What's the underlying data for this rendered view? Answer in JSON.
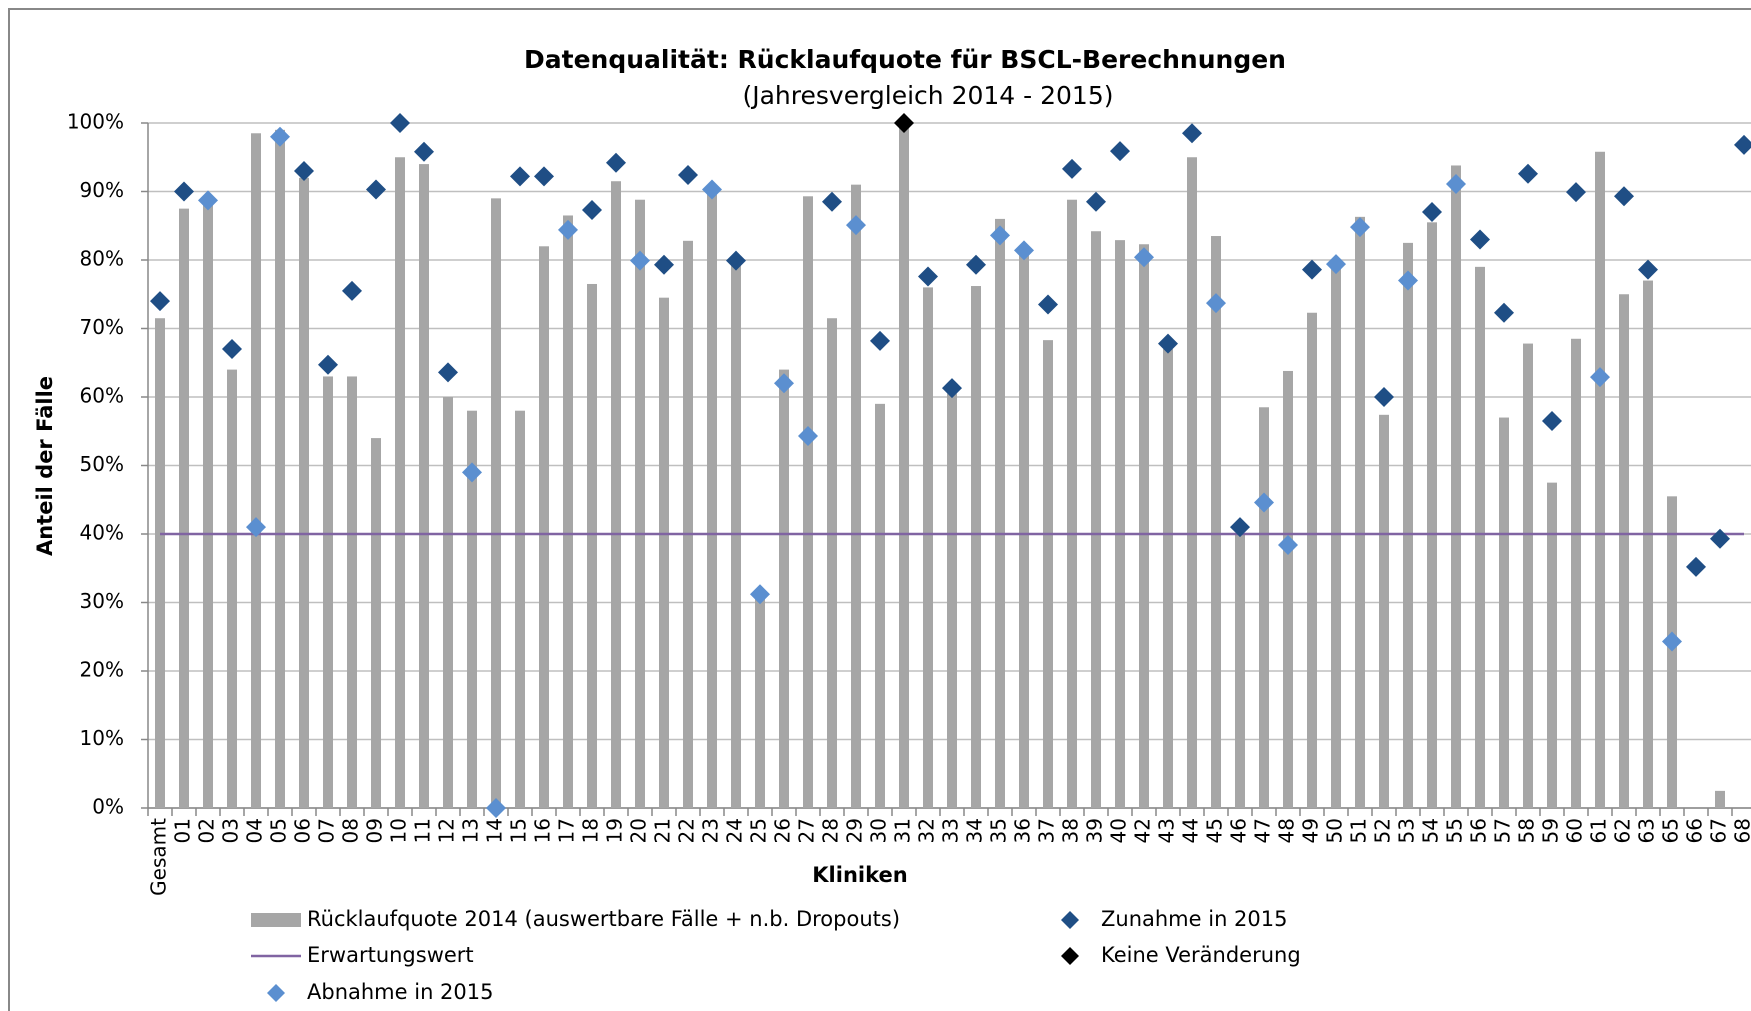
{
  "chart_data": {
    "type": "bar",
    "title": "Datenqualität: Rücklaufquote für BSCL-Berechnungen",
    "subtitle": "(Jahresvergleich 2014 - 2015)",
    "x_label": "Kliniken",
    "y_label": "Anteil der Fälle",
    "categories": [
      "Gesamt",
      "01",
      "02",
      "03",
      "04",
      "05",
      "06",
      "07",
      "08",
      "09",
      "10",
      "11",
      "12",
      "13",
      "14",
      "15",
      "16",
      "17",
      "18",
      "19",
      "20",
      "21",
      "22",
      "23",
      "24",
      "25",
      "26",
      "27",
      "28",
      "29",
      "30",
      "31",
      "32",
      "33",
      "34",
      "35",
      "36",
      "37",
      "38",
      "39",
      "40",
      "42",
      "43",
      "44",
      "45",
      "46",
      "47",
      "48",
      "49",
      "50",
      "51",
      "52",
      "53",
      "54",
      "55",
      "56",
      "57",
      "58",
      "59",
      "60",
      "61",
      "62",
      "63",
      "65",
      "66",
      "67",
      "68"
    ],
    "ylim": [
      0,
      100
    ],
    "yticks": [
      {
        "value": 0,
        "label": "0%"
      },
      {
        "value": 10,
        "label": "10%"
      },
      {
        "value": 20,
        "label": "20%"
      },
      {
        "value": 30,
        "label": "30%"
      },
      {
        "value": 40,
        "label": "40%"
      },
      {
        "value": 50,
        "label": "50%"
      },
      {
        "value": 60,
        "label": "60%"
      },
      {
        "value": 70,
        "label": "70%"
      },
      {
        "value": 80,
        "label": "80%"
      },
      {
        "value": 90,
        "label": "90%"
      },
      {
        "value": 100,
        "label": "100%"
      }
    ],
    "grid": true,
    "series": [
      {
        "name": "Rücklaufquote 2014 (auswertbare Fälle + n.b. Dropouts)",
        "type": "bar",
        "color": "#a6a6a6",
        "values": [
          71.5,
          87.5,
          89,
          64,
          98.5,
          99,
          92,
          63,
          63,
          54,
          95,
          94,
          60,
          58,
          89,
          58,
          82,
          86.5,
          76.5,
          91.5,
          88.8,
          74.5,
          82.8,
          90.5,
          79.8,
          31,
          64,
          89.3,
          71.5,
          91,
          59,
          100,
          76,
          60.5,
          76.2,
          86,
          82,
          68.3,
          88.8,
          84.2,
          82.9,
          82.3,
          67,
          95,
          83.5,
          40,
          58.5,
          63.8,
          72.3,
          79,
          86.3,
          57.4,
          82.5,
          85.5,
          93.8,
          79,
          57,
          67.8,
          47.5,
          68.5,
          95.8,
          75,
          77,
          45.5,
          null,
          2.5,
          null
        ]
      },
      {
        "name": "Erwartungswert",
        "type": "line",
        "color": "#8064a2",
        "values": [
          40,
          40,
          40,
          40,
          40,
          40,
          40,
          40,
          40,
          40,
          40,
          40,
          40,
          40,
          40,
          40,
          40,
          40,
          40,
          40,
          40,
          40,
          40,
          40,
          40,
          40,
          40,
          40,
          40,
          40,
          40,
          40,
          40,
          40,
          40,
          40,
          40,
          40,
          40,
          40,
          40,
          40,
          40,
          40,
          40,
          40,
          40,
          40,
          40,
          40,
          40,
          40,
          40,
          40,
          40,
          40,
          40,
          40,
          40,
          40,
          40,
          40,
          40,
          40,
          40,
          40,
          40
        ]
      },
      {
        "name": "Abnahme in 2015",
        "type": "scatter",
        "color": "#5b8fd0",
        "values": [
          null,
          null,
          88.7,
          null,
          41,
          98,
          null,
          null,
          null,
          null,
          null,
          null,
          null,
          49,
          0,
          null,
          null,
          84.4,
          null,
          null,
          79.9,
          null,
          null,
          90.3,
          null,
          31.2,
          62,
          54.3,
          null,
          85.1,
          null,
          null,
          null,
          null,
          null,
          83.6,
          81.4,
          null,
          null,
          null,
          null,
          80.4,
          null,
          null,
          73.7,
          null,
          44.6,
          38.4,
          null,
          79.4,
          84.8,
          null,
          77,
          null,
          91.1,
          null,
          null,
          null,
          null,
          null,
          62.9,
          null,
          null,
          24.3,
          null,
          null,
          null
        ]
      },
      {
        "name": "Zunahme in 2015",
        "type": "scatter",
        "color": "#1f4e85",
        "values": [
          74,
          90,
          null,
          67,
          null,
          null,
          93,
          64.7,
          75.5,
          90.3,
          100,
          95.8,
          63.6,
          null,
          null,
          92.2,
          92.2,
          null,
          87.3,
          94.2,
          null,
          79.3,
          92.4,
          null,
          79.9,
          null,
          null,
          null,
          88.5,
          null,
          68.2,
          null,
          77.6,
          61.3,
          79.3,
          null,
          null,
          73.5,
          93.3,
          88.5,
          95.9,
          null,
          67.8,
          98.5,
          null,
          41,
          null,
          null,
          78.6,
          null,
          null,
          60,
          null,
          87,
          null,
          83,
          72.3,
          92.6,
          56.5,
          89.9,
          null,
          89.3,
          78.6,
          null,
          35.2,
          39.3,
          96.8
        ]
      },
      {
        "name": "Keine Veränderung",
        "type": "scatter",
        "color": "#000000",
        "values": [
          null,
          null,
          null,
          null,
          null,
          null,
          null,
          null,
          null,
          null,
          null,
          null,
          null,
          null,
          null,
          null,
          null,
          null,
          null,
          null,
          null,
          null,
          null,
          null,
          null,
          null,
          null,
          null,
          null,
          null,
          null,
          100,
          null,
          null,
          null,
          null,
          null,
          null,
          null,
          null,
          null,
          null,
          null,
          null,
          null,
          null,
          null,
          null,
          null,
          null,
          null,
          null,
          null,
          null,
          null,
          null,
          null,
          null,
          null,
          null,
          null,
          null,
          null,
          null,
          null,
          null,
          null
        ]
      }
    ]
  }
}
